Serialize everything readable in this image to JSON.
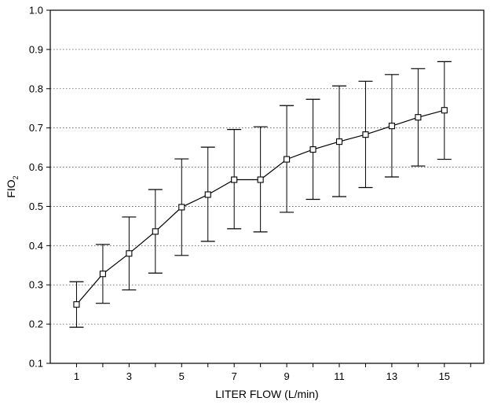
{
  "chart_data": {
    "type": "line",
    "xlabel": "LITER FLOW (L/min)",
    "ylabel_main": "FIO",
    "ylabel_sub": "2",
    "x": [
      1,
      2,
      3,
      4,
      5,
      6,
      7,
      8,
      9,
      10,
      11,
      12,
      13,
      14,
      15
    ],
    "xlim": [
      0,
      16.5
    ],
    "ylim": [
      0.1,
      1.0
    ],
    "xticks": [
      1,
      3,
      5,
      7,
      9,
      11,
      13,
      15
    ],
    "xtick_labels": [
      "1",
      "3",
      "5",
      "7",
      "9",
      "11",
      "13",
      "15"
    ],
    "yticks": [
      0.1,
      0.2,
      0.3,
      0.4,
      0.5,
      0.6,
      0.7,
      0.8,
      0.9,
      1.0
    ],
    "ytick_labels": [
      "0.1",
      "0.2",
      "0.3",
      "0.4",
      "0.5",
      "0.6",
      "0.7",
      "0.8",
      "0.9",
      "1.0"
    ],
    "series": [
      {
        "values": [
          0.25,
          0.328,
          0.38,
          0.436,
          0.498,
          0.53,
          0.568,
          0.568,
          0.62,
          0.645,
          0.665,
          0.683,
          0.705,
          0.727,
          0.745
        ],
        "lower": [
          0.192,
          0.253,
          0.287,
          0.33,
          0.375,
          0.411,
          0.443,
          0.435,
          0.485,
          0.518,
          0.525,
          0.548,
          0.575,
          0.603,
          0.62
        ],
        "upper": [
          0.308,
          0.403,
          0.473,
          0.543,
          0.621,
          0.651,
          0.696,
          0.703,
          0.757,
          0.773,
          0.807,
          0.819,
          0.836,
          0.851,
          0.869
        ]
      }
    ],
    "marker": "open-square",
    "error_bars": true,
    "grid": "horizontal-dotted",
    "line_color": "#000000"
  }
}
